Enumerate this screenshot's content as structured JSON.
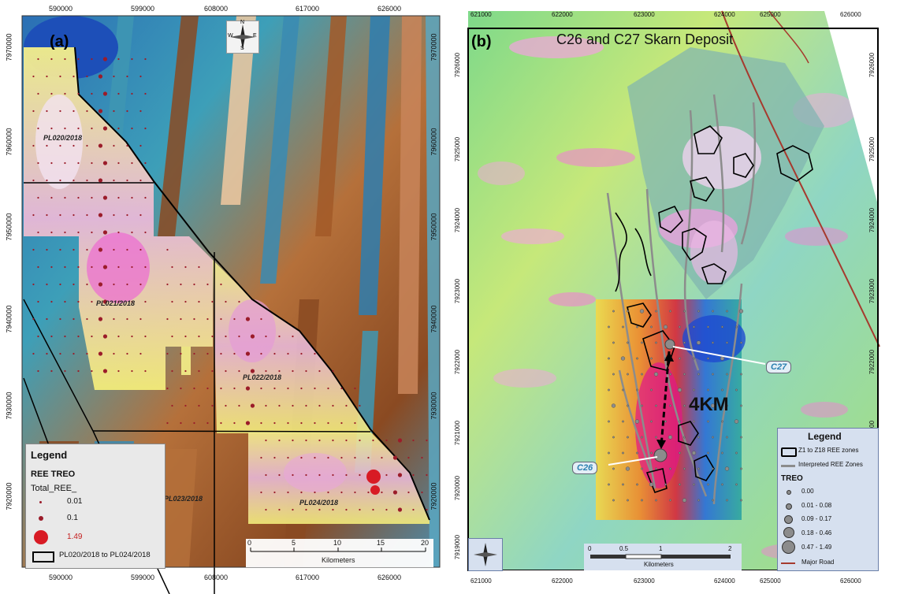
{
  "panel_a": {
    "label": "(a)",
    "x_ticks": [
      "590000",
      "599000",
      "608000",
      "617000",
      "626000"
    ],
    "y_ticks": [
      "7970000",
      "7960000",
      "7950000",
      "7940000",
      "7930000",
      "7920000"
    ],
    "licences": [
      "PL020/2018",
      "PL021/2018",
      "PL022/2018",
      "PL024/2018",
      "PL023/2018"
    ],
    "compass": {
      "n": "N",
      "s": "S",
      "e": "E",
      "w": "W"
    },
    "legend": {
      "title": "Legend",
      "subtitle": "REE TREO",
      "field": "Total_REE_",
      "items": [
        "0.01",
        "0.1",
        "1.49"
      ],
      "boundary": "PL020/2018 to PL024/2018"
    },
    "scalebar": {
      "ticks": [
        "0",
        "5",
        "10",
        "15",
        "20"
      ],
      "unit": "Kilometers"
    }
  },
  "panel_b": {
    "label": "(b)",
    "title": "C26 and C27 Skarn Deposit",
    "x_ticks": [
      "621000",
      "622000",
      "623000",
      "624000",
      "625000",
      "626000"
    ],
    "y_ticks": [
      "7926000",
      "7925000",
      "7924000",
      "7923000",
      "7922000",
      "7921000",
      "7920000",
      "7919000"
    ],
    "callouts": {
      "c27": "C27",
      "c26": "C26"
    },
    "distance": "4KM",
    "legend": {
      "title": "Legend",
      "zones": "Z1 to Z18 REE zones",
      "interpreted": "Interpreted REE Zones",
      "treo_title": "TREO",
      "treo_items": [
        "0.00",
        "0.01 - 0.08",
        "0.09 - 0.17",
        "0.18 - 0.46",
        "0.47 - 1.49"
      ],
      "road": "Major Road"
    },
    "scalebar": {
      "ticks": [
        "0",
        "0.5",
        "1",
        "2"
      ],
      "unit": "Kilometers"
    }
  },
  "colors": {
    "road": "#a63a2e",
    "boundary": "#000000",
    "sample": "#9b1c2a",
    "big_sample": "#d81b24",
    "callout_text": "#2a7fb0"
  }
}
